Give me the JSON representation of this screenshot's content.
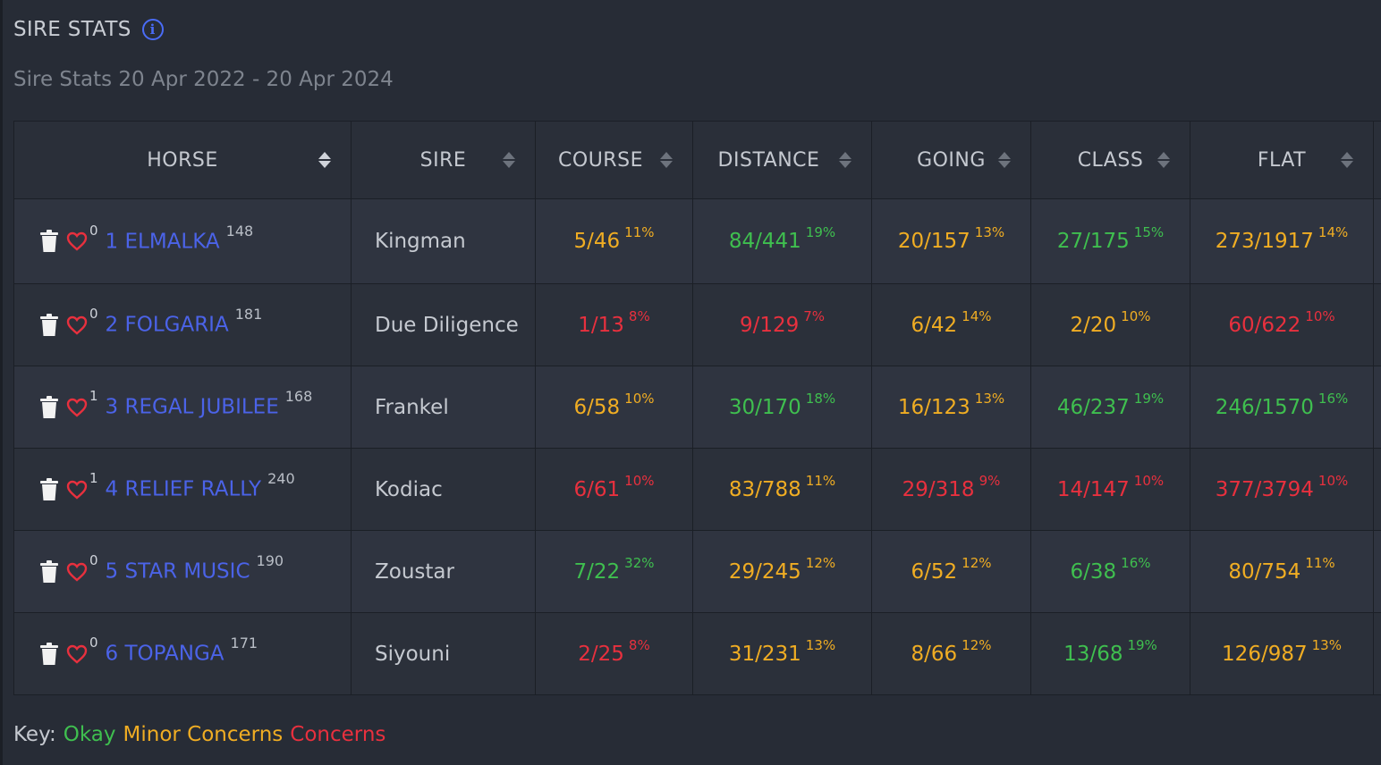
{
  "panel": {
    "title": "SIRE STATS",
    "info_icon": "info-icon",
    "subtitle": "Sire Stats 20 Apr 2022 - 20 Apr 2024"
  },
  "colors": {
    "okay": "#3fbf4f",
    "minor": "#f0ad23",
    "concern": "#e8303e",
    "link": "#4b63e8",
    "background": "#272c36"
  },
  "table": {
    "headers": [
      "HORSE",
      "SIRE",
      "COURSE",
      "DISTANCE",
      "GOING",
      "CLASS",
      "FLAT"
    ],
    "rows": [
      {
        "favs": "0",
        "name": "1 ELMALKA",
        "rating": "148",
        "sire": "Kingman",
        "course": {
          "val": "5/46",
          "pct": "11%",
          "status": "minor"
        },
        "distance": {
          "val": "84/441",
          "pct": "19%",
          "status": "okay"
        },
        "going": {
          "val": "20/157",
          "pct": "13%",
          "status": "minor"
        },
        "class": {
          "val": "27/175",
          "pct": "15%",
          "status": "okay"
        },
        "flat": {
          "val": "273/1917",
          "pct": "14%",
          "status": "minor"
        }
      },
      {
        "favs": "0",
        "name": "2 FOLGARIA",
        "rating": "181",
        "sire": "Due Diligence",
        "course": {
          "val": "1/13",
          "pct": "8%",
          "status": "concern"
        },
        "distance": {
          "val": "9/129",
          "pct": "7%",
          "status": "concern"
        },
        "going": {
          "val": "6/42",
          "pct": "14%",
          "status": "minor"
        },
        "class": {
          "val": "2/20",
          "pct": "10%",
          "status": "minor"
        },
        "flat": {
          "val": "60/622",
          "pct": "10%",
          "status": "concern"
        }
      },
      {
        "favs": "1",
        "name": "3 REGAL JUBILEE",
        "rating": "168",
        "sire": "Frankel",
        "course": {
          "val": "6/58",
          "pct": "10%",
          "status": "minor"
        },
        "distance": {
          "val": "30/170",
          "pct": "18%",
          "status": "okay"
        },
        "going": {
          "val": "16/123",
          "pct": "13%",
          "status": "minor"
        },
        "class": {
          "val": "46/237",
          "pct": "19%",
          "status": "okay"
        },
        "flat": {
          "val": "246/1570",
          "pct": "16%",
          "status": "okay"
        }
      },
      {
        "favs": "1",
        "name": "4 RELIEF RALLY",
        "rating": "240",
        "sire": "Kodiac",
        "course": {
          "val": "6/61",
          "pct": "10%",
          "status": "concern"
        },
        "distance": {
          "val": "83/788",
          "pct": "11%",
          "status": "minor"
        },
        "going": {
          "val": "29/318",
          "pct": "9%",
          "status": "concern"
        },
        "class": {
          "val": "14/147",
          "pct": "10%",
          "status": "concern"
        },
        "flat": {
          "val": "377/3794",
          "pct": "10%",
          "status": "concern"
        }
      },
      {
        "favs": "0",
        "name": "5 STAR MUSIC",
        "rating": "190",
        "sire": "Zoustar",
        "course": {
          "val": "7/22",
          "pct": "32%",
          "status": "okay"
        },
        "distance": {
          "val": "29/245",
          "pct": "12%",
          "status": "minor"
        },
        "going": {
          "val": "6/52",
          "pct": "12%",
          "status": "minor"
        },
        "class": {
          "val": "6/38",
          "pct": "16%",
          "status": "okay"
        },
        "flat": {
          "val": "80/754",
          "pct": "11%",
          "status": "minor"
        }
      },
      {
        "favs": "0",
        "name": "6 TOPANGA",
        "rating": "171",
        "sire": "Siyouni",
        "course": {
          "val": "2/25",
          "pct": "8%",
          "status": "concern"
        },
        "distance": {
          "val": "31/231",
          "pct": "13%",
          "status": "minor"
        },
        "going": {
          "val": "8/66",
          "pct": "12%",
          "status": "minor"
        },
        "class": {
          "val": "13/68",
          "pct": "19%",
          "status": "okay"
        },
        "flat": {
          "val": "126/987",
          "pct": "13%",
          "status": "minor"
        }
      }
    ]
  },
  "key": {
    "label": "Key:",
    "okay": "Okay",
    "minor": "Minor Concerns",
    "concern": "Concerns"
  }
}
